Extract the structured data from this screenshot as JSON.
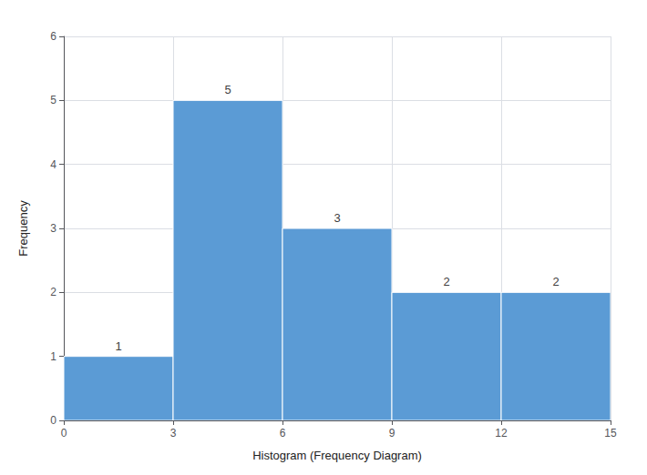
{
  "chart_data": {
    "type": "histogram",
    "bins": [
      0,
      3,
      6,
      9,
      12,
      15
    ],
    "values": [
      1,
      5,
      3,
      2,
      2
    ],
    "color": "#5B9BD5",
    "xlabel": "Histogram (Frequency Diagram)",
    "ylabel": "Frequency",
    "xlim": [
      0,
      15
    ],
    "ylim": [
      0,
      6
    ],
    "xticks": [
      0,
      3,
      6,
      9,
      12,
      15
    ],
    "yticks": [
      0,
      1,
      2,
      3,
      4,
      5,
      6
    ],
    "grid": true,
    "data_labels": true
  }
}
